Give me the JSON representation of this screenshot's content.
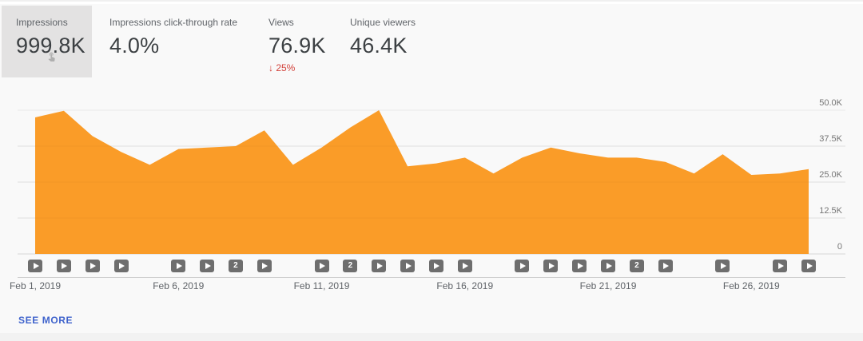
{
  "metrics": {
    "cards": [
      {
        "id": "impressions",
        "label": "Impressions",
        "value": "999.8K",
        "selected": true
      },
      {
        "id": "impressions-ctr",
        "label": "Impressions click-through rate",
        "value": "4.0%",
        "selected": false
      },
      {
        "id": "views",
        "label": "Views",
        "value": "76.9K",
        "delta": "↓ 25%",
        "selected": false
      },
      {
        "id": "unique-viewers",
        "label": "Unique viewers",
        "value": "46.4K",
        "selected": false
      }
    ]
  },
  "chart_data": {
    "type": "area",
    "series_name": "Impressions",
    "unit": "thousands",
    "categories": [
      "Feb 1",
      "Feb 2",
      "Feb 3",
      "Feb 4",
      "Feb 5",
      "Feb 6",
      "Feb 7",
      "Feb 8",
      "Feb 9",
      "Feb 10",
      "Feb 11",
      "Feb 12",
      "Feb 13",
      "Feb 14",
      "Feb 15",
      "Feb 16",
      "Feb 17",
      "Feb 18",
      "Feb 19",
      "Feb 20",
      "Feb 21",
      "Feb 22",
      "Feb 23",
      "Feb 24",
      "Feb 25",
      "Feb 26",
      "Feb 27",
      "Feb 28"
    ],
    "values_k": [
      47.5,
      49.8,
      41,
      35.5,
      31,
      36.5,
      37,
      37.5,
      43,
      31,
      37,
      44,
      50,
      30.5,
      31.5,
      33.5,
      28,
      33.5,
      37,
      35,
      33.5,
      33.5,
      32,
      28,
      34.7,
      27.5,
      28,
      29.5
    ],
    "ylim_k": [
      0,
      50
    ],
    "ytick_values": [
      50,
      37.5,
      25,
      12.5,
      0
    ],
    "ytick_labels": [
      "50.0K",
      "37.5K",
      "25.0K",
      "12.5K",
      "0"
    ],
    "xticks": [
      {
        "day": 1,
        "label": "Feb 1, 2019"
      },
      {
        "day": 6,
        "label": "Feb 6, 2019"
      },
      {
        "day": 11,
        "label": "Feb 11, 2019"
      },
      {
        "day": 16,
        "label": "Feb 16, 2019"
      },
      {
        "day": 21,
        "label": "Feb 21, 2019"
      },
      {
        "day": 26,
        "label": "Feb 26, 2019"
      }
    ],
    "grid": true,
    "legend": "none"
  },
  "timeline": {
    "videos": [
      {
        "day": 1,
        "badge": "play"
      },
      {
        "day": 2,
        "badge": "play"
      },
      {
        "day": 3,
        "badge": "play"
      },
      {
        "day": 4,
        "badge": "play"
      },
      {
        "day": 6,
        "badge": "play"
      },
      {
        "day": 7,
        "badge": "play"
      },
      {
        "day": 8,
        "badge": "2"
      },
      {
        "day": 9,
        "badge": "play"
      },
      {
        "day": 11,
        "badge": "play"
      },
      {
        "day": 12,
        "badge": "2"
      },
      {
        "day": 13,
        "badge": "play"
      },
      {
        "day": 14,
        "badge": "play"
      },
      {
        "day": 15,
        "badge": "play"
      },
      {
        "day": 16,
        "badge": "play"
      },
      {
        "day": 18,
        "badge": "play"
      },
      {
        "day": 19,
        "badge": "play"
      },
      {
        "day": 20,
        "badge": "play"
      },
      {
        "day": 21,
        "badge": "play"
      },
      {
        "day": 22,
        "badge": "2"
      },
      {
        "day": 23,
        "badge": "play"
      },
      {
        "day": 25,
        "badge": "play"
      },
      {
        "day": 27,
        "badge": "play"
      },
      {
        "day": 28,
        "badge": "play"
      }
    ]
  },
  "footer": {
    "see_more": "SEE MORE"
  },
  "colors": {
    "area_orange": "#FA9C28",
    "negative_red": "#D2423B",
    "link_blue": "#3F63CC",
    "selected_card_bg": "#E3E2E2",
    "gridline": "#E9E9E9",
    "zero_line": "#D7D7D7",
    "icon_gray": "#6E6E6E"
  }
}
